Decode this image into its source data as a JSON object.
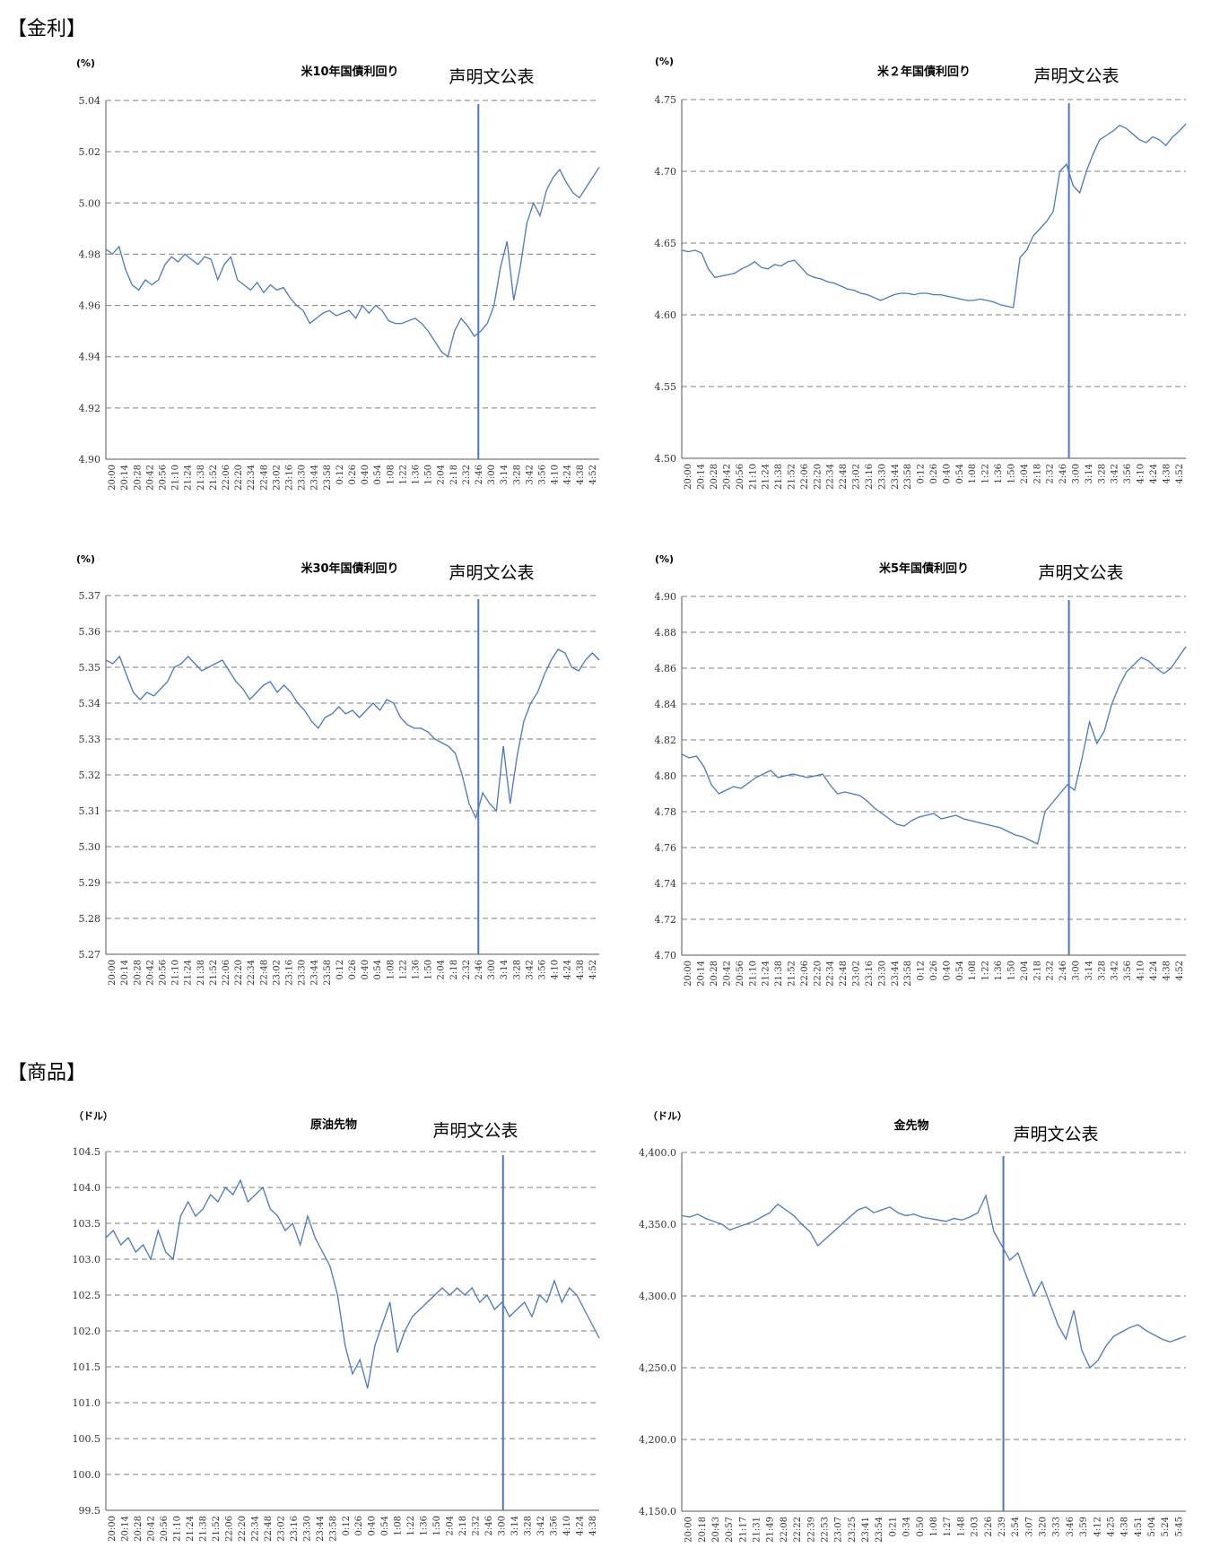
{
  "sections": {
    "rates": "【金利】",
    "commodities": "【商品】"
  },
  "style": {
    "line_color": "#4a78bf",
    "grid_color": "#7f7f7f"
  },
  "chart_data": [
    {
      "id": "ust10y",
      "type": "line",
      "title": "米10年国債利回り",
      "unit": "(%)",
      "annotation": "声明文公表",
      "ylim": [
        4.9,
        5.04
      ],
      "yticks": [
        "4.90",
        "4.92",
        "4.94",
        "4.96",
        "4.98",
        "5.00",
        "5.02",
        "5.04"
      ],
      "xticks": [
        "20:00",
        "20:14",
        "20:28",
        "20:42",
        "20:56",
        "21:10",
        "21:24",
        "21:38",
        "21:52",
        "22:06",
        "22:20",
        "22:34",
        "22:48",
        "23:02",
        "23:16",
        "23:30",
        "23:44",
        "23:58",
        "0:12",
        "0:26",
        "0:40",
        "0:54",
        "1:08",
        "1:22",
        "1:36",
        "1:50",
        "2:04",
        "2:18",
        "2:32",
        "2:46",
        "3:00",
        "3:14",
        "3:28",
        "3:42",
        "3:56",
        "4:10",
        "4:24",
        "4:38",
        "4:52"
      ],
      "event_x": "3:00",
      "grid": true,
      "series": [
        {
          "values": [
            4.982,
            4.98,
            4.983,
            4.974,
            4.968,
            4.966,
            4.97,
            4.968,
            4.97,
            4.976,
            4.979,
            4.977,
            4.98,
            4.978,
            4.976,
            4.979,
            4.978,
            4.97,
            4.976,
            4.979,
            4.97,
            4.968,
            4.966,
            4.969,
            4.965,
            4.968,
            4.966,
            4.967,
            4.963,
            4.96,
            4.958,
            4.953,
            4.955,
            4.957,
            4.958,
            4.956,
            4.957,
            4.958,
            4.955,
            4.96,
            4.957,
            4.96,
            4.958,
            4.954,
            4.953,
            4.953,
            4.954,
            4.955,
            4.953,
            4.95,
            4.946,
            4.942,
            4.94,
            4.95,
            4.955,
            4.952,
            4.948,
            4.95,
            4.953,
            4.96,
            4.975,
            4.985,
            4.962,
            4.975,
            4.992,
            5.0,
            4.995,
            5.005,
            5.01,
            5.013,
            5.008,
            5.004,
            5.002,
            5.006,
            5.01,
            5.014
          ]
        }
      ]
    },
    {
      "id": "ust2y",
      "type": "line",
      "title": "米２年国債利回り",
      "unit": "(%)",
      "annotation": "声明文公表",
      "ylim": [
        4.5,
        4.75
      ],
      "yticks": [
        "4.50",
        "4.55",
        "4.60",
        "4.65",
        "4.70",
        "4.75"
      ],
      "xticks": [
        "20:00",
        "20:14",
        "20:28",
        "20:42",
        "20:56",
        "21:10",
        "21:24",
        "21:38",
        "21:52",
        "22:06",
        "22:20",
        "22:34",
        "22:48",
        "23:02",
        "23:16",
        "23:30",
        "23:44",
        "23:58",
        "0:12",
        "0:26",
        "0:40",
        "0:54",
        "1:08",
        "1:22",
        "1:36",
        "1:50",
        "2:04",
        "2:18",
        "2:32",
        "2:46",
        "3:00",
        "3:14",
        "3:28",
        "3:42",
        "3:56",
        "4:10",
        "4:24",
        "4:38",
        "4:52"
      ],
      "event_x": "3:00",
      "grid": true,
      "series": [
        {
          "values": [
            4.645,
            4.644,
            4.645,
            4.643,
            4.632,
            4.626,
            4.627,
            4.628,
            4.629,
            4.632,
            4.634,
            4.637,
            4.633,
            4.632,
            4.635,
            4.634,
            4.637,
            4.638,
            4.633,
            4.628,
            4.626,
            4.625,
            4.623,
            4.622,
            4.62,
            4.618,
            4.617,
            4.615,
            4.614,
            4.612,
            4.61,
            4.612,
            4.614,
            4.615,
            4.615,
            4.614,
            4.615,
            4.615,
            4.614,
            4.614,
            4.613,
            4.612,
            4.611,
            4.61,
            4.61,
            4.611,
            4.61,
            4.609,
            4.607,
            4.606,
            4.605,
            4.64,
            4.645,
            4.655,
            4.66,
            4.665,
            4.672,
            4.7,
            4.705,
            4.69,
            4.685,
            4.7,
            4.712,
            4.722,
            4.725,
            4.728,
            4.732,
            4.73,
            4.726,
            4.722,
            4.72,
            4.724,
            4.722,
            4.718,
            4.724,
            4.728,
            4.733
          ]
        }
      ]
    },
    {
      "id": "ust30y",
      "type": "line",
      "title": "米30年国債利回り",
      "unit": "(%)",
      "annotation": "声明文公表",
      "ylim": [
        5.27,
        5.37
      ],
      "yticks": [
        "5.27",
        "5.28",
        "5.29",
        "5.30",
        "5.31",
        "5.32",
        "5.33",
        "5.34",
        "5.35",
        "5.36",
        "5.37"
      ],
      "xticks": [
        "20:00",
        "20:14",
        "20:28",
        "20:42",
        "20:56",
        "21:10",
        "21:24",
        "21:38",
        "21:52",
        "22:06",
        "22:20",
        "22:34",
        "22:48",
        "23:02",
        "23:16",
        "23:30",
        "23:44",
        "23:58",
        "0:12",
        "0:26",
        "0:40",
        "0:54",
        "1:08",
        "1:22",
        "1:36",
        "1:50",
        "2:04",
        "2:18",
        "2:32",
        "2:46",
        "3:00",
        "3:14",
        "3:28",
        "3:42",
        "3:56",
        "4:10",
        "4:24",
        "4:38",
        "4:52"
      ],
      "event_x": "3:00",
      "grid": true,
      "series": [
        {
          "values": [
            5.352,
            5.351,
            5.353,
            5.348,
            5.343,
            5.341,
            5.343,
            5.342,
            5.344,
            5.346,
            5.35,
            5.351,
            5.353,
            5.351,
            5.349,
            5.35,
            5.351,
            5.352,
            5.349,
            5.346,
            5.344,
            5.341,
            5.343,
            5.345,
            5.346,
            5.343,
            5.345,
            5.343,
            5.34,
            5.338,
            5.335,
            5.333,
            5.336,
            5.337,
            5.339,
            5.337,
            5.338,
            5.336,
            5.338,
            5.34,
            5.338,
            5.341,
            5.34,
            5.336,
            5.334,
            5.333,
            5.333,
            5.332,
            5.33,
            5.329,
            5.328,
            5.326,
            5.32,
            5.312,
            5.308,
            5.315,
            5.312,
            5.31,
            5.328,
            5.312,
            5.325,
            5.335,
            5.34,
            5.343,
            5.348,
            5.352,
            5.355,
            5.354,
            5.35,
            5.349,
            5.352,
            5.354,
            5.352
          ]
        }
      ]
    },
    {
      "id": "ust5y",
      "type": "line",
      "title": "米5年国債利回り",
      "unit": "(%)",
      "annotation": "声明文公表",
      "ylim": [
        4.7,
        4.9
      ],
      "yticks": [
        "4.70",
        "4.72",
        "4.74",
        "4.76",
        "4.78",
        "4.80",
        "4.82",
        "4.84",
        "4.86",
        "4.88",
        "4.90"
      ],
      "xticks": [
        "20:00",
        "20:14",
        "20:28",
        "20:42",
        "20:56",
        "21:10",
        "21:24",
        "21:38",
        "21:52",
        "22:06",
        "22:20",
        "22:34",
        "22:48",
        "23:02",
        "23:16",
        "23:30",
        "23:44",
        "23:58",
        "0:12",
        "0:26",
        "0:40",
        "0:54",
        "1:08",
        "1:22",
        "1:36",
        "1:50",
        "2:04",
        "2:18",
        "2:32",
        "2:46",
        "3:00",
        "3:14",
        "3:28",
        "3:42",
        "3:56",
        "4:10",
        "4:24",
        "4:38",
        "4:52"
      ],
      "event_x": "3:00",
      "grid": true,
      "series": [
        {
          "values": [
            4.812,
            4.81,
            4.811,
            4.805,
            4.795,
            4.79,
            4.792,
            4.794,
            4.793,
            4.796,
            4.799,
            4.801,
            4.803,
            4.799,
            4.8,
            4.801,
            4.8,
            4.799,
            4.8,
            4.801,
            4.795,
            4.79,
            4.791,
            4.79,
            4.789,
            4.786,
            4.782,
            4.779,
            4.776,
            4.773,
            4.772,
            4.775,
            4.777,
            4.778,
            4.779,
            4.776,
            4.777,
            4.778,
            4.776,
            4.775,
            4.774,
            4.773,
            4.772,
            4.771,
            4.769,
            4.767,
            4.766,
            4.764,
            4.762,
            4.78,
            4.785,
            4.79,
            4.795,
            4.792,
            4.81,
            4.83,
            4.818,
            4.825,
            4.84,
            4.85,
            4.858,
            4.862,
            4.866,
            4.864,
            4.86,
            4.857,
            4.86,
            4.866,
            4.872
          ]
        }
      ]
    },
    {
      "id": "crude",
      "type": "line",
      "title": "原油先物",
      "unit": "（ドル）",
      "annotation": "声明文公表",
      "ylim": [
        99.5,
        104.5
      ],
      "yticks": [
        "99.5",
        "100.0",
        "100.5",
        "101.0",
        "101.5",
        "102.0",
        "102.5",
        "103.0",
        "103.5",
        "104.0",
        "104.5"
      ],
      "xticks": [
        "20:00",
        "20:14",
        "20:28",
        "20:42",
        "20:56",
        "21:10",
        "21:24",
        "21:38",
        "21:52",
        "22:06",
        "22:20",
        "22:34",
        "22:48",
        "23:02",
        "23:16",
        "23:30",
        "23:44",
        "23:58",
        "0:12",
        "0:26",
        "0:40",
        "0:54",
        "1:08",
        "1:22",
        "1:36",
        "1:50",
        "2:04",
        "2:18",
        "2:32",
        "2:46",
        "3:00",
        "3:14",
        "3:28",
        "3:42",
        "3:56",
        "4:10",
        "4:24",
        "4:38"
      ],
      "event_x": "3:00",
      "grid": true,
      "series": [
        {
          "values": [
            103.3,
            103.4,
            103.2,
            103.3,
            103.1,
            103.2,
            103.0,
            103.4,
            103.1,
            103.0,
            103.6,
            103.8,
            103.6,
            103.7,
            103.9,
            103.8,
            104.0,
            103.9,
            104.1,
            103.8,
            103.9,
            104.0,
            103.7,
            103.6,
            103.4,
            103.5,
            103.2,
            103.6,
            103.3,
            103.1,
            102.9,
            102.5,
            101.8,
            101.4,
            101.6,
            101.2,
            101.8,
            102.1,
            102.4,
            101.7,
            102.0,
            102.2,
            102.3,
            102.4,
            102.5,
            102.6,
            102.5,
            102.6,
            102.5,
            102.6,
            102.4,
            102.5,
            102.3,
            102.4,
            102.2,
            102.3,
            102.4,
            102.2,
            102.5,
            102.4,
            102.7,
            102.4,
            102.6,
            102.5,
            102.3,
            102.1,
            101.9
          ]
        }
      ]
    },
    {
      "id": "gold",
      "type": "line",
      "title": "金先物",
      "unit": "（ドル）",
      "annotation": "声明文公表",
      "ylim": [
        4150,
        4400
      ],
      "yticks": [
        "4,150.0",
        "4,200.0",
        "4,250.0",
        "4,300.0",
        "4,350.0",
        "4,400.0"
      ],
      "xticks": [
        "20:00",
        "20:18",
        "20:43",
        "20:57",
        "21:17",
        "21:31",
        "21:49",
        "22:08",
        "22:22",
        "22:39",
        "22:53",
        "23:07",
        "23:25",
        "23:41",
        "23:54",
        "0:21",
        "0:34",
        "0:50",
        "1:08",
        "1:27",
        "1:48",
        "2:03",
        "2:26",
        "2:39",
        "2:54",
        "3:07",
        "3:20",
        "3:33",
        "3:46",
        "3:59",
        "4:12",
        "4:25",
        "4:38",
        "4:51",
        "5:04",
        "5:24",
        "5:45"
      ],
      "event_x": "3:00",
      "grid": true,
      "series": [
        {
          "values": [
            4356,
            4355,
            4357,
            4354,
            4352,
            4350,
            4346,
            4348,
            4350,
            4352,
            4355,
            4358,
            4364,
            4360,
            4356,
            4350,
            4345,
            4335,
            4340,
            4345,
            4350,
            4355,
            4360,
            4362,
            4358,
            4360,
            4362,
            4358,
            4356,
            4357,
            4355,
            4354,
            4353,
            4352,
            4354,
            4353,
            4355,
            4358,
            4370,
            4345,
            4335,
            4325,
            4330,
            4315,
            4300,
            4310,
            4295,
            4280,
            4270,
            4290,
            4262,
            4250,
            4255,
            4265,
            4272,
            4275,
            4278,
            4280,
            4276,
            4273,
            4270,
            4268,
            4270,
            4272
          ]
        }
      ]
    }
  ]
}
